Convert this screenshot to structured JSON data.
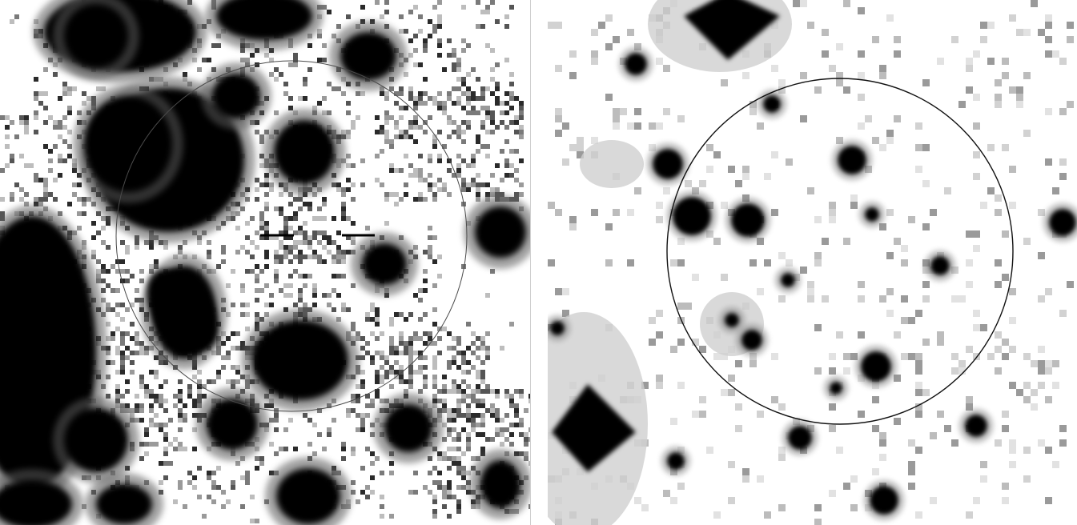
{
  "panels": [
    {
      "id": "left",
      "caption": "",
      "background": "#ffffff",
      "speckle_level": "heavy",
      "stars": [
        {
          "kind": "blob"
        },
        {
          "kind": "blob"
        },
        {
          "kind": "blob"
        },
        {
          "kind": "blob"
        },
        {
          "kind": "blob"
        },
        {
          "kind": "blob"
        },
        {
          "kind": "blob"
        },
        {
          "kind": "blob"
        },
        {
          "kind": "blob"
        },
        {
          "kind": "blob"
        },
        {
          "kind": "blob"
        },
        {
          "kind": "blob"
        },
        {
          "kind": "blob"
        },
        {
          "kind": "blob"
        },
        {
          "kind": "blob"
        },
        {
          "kind": "blob"
        },
        {
          "kind": "blob"
        },
        {
          "kind": "blob"
        },
        {
          "kind": "blob"
        },
        {
          "kind": "blob"
        }
      ],
      "has_marker_ticks": true,
      "circle_color": "#4a4a4a"
    },
    {
      "id": "right",
      "caption": "",
      "background": "#ffffff",
      "speckle_level": "light",
      "stars": [
        {
          "kind": "star"
        },
        {
          "kind": "star"
        },
        {
          "kind": "star"
        },
        {
          "kind": "star"
        },
        {
          "kind": "star"
        },
        {
          "kind": "star"
        },
        {
          "kind": "star"
        },
        {
          "kind": "star"
        },
        {
          "kind": "star"
        },
        {
          "kind": "star"
        },
        {
          "kind": "star"
        },
        {
          "kind": "star"
        },
        {
          "kind": "star"
        },
        {
          "kind": "star"
        },
        {
          "kind": "star"
        },
        {
          "kind": "star"
        },
        {
          "kind": "star"
        },
        {
          "kind": "star"
        },
        {
          "kind": "star"
        }
      ],
      "has_marker_ticks": false,
      "circle_color": "#111111"
    }
  ],
  "colors": {
    "ink": "#000000",
    "mid_gray": "#5a5a5a",
    "light_gray": "#c8c8c8"
  }
}
